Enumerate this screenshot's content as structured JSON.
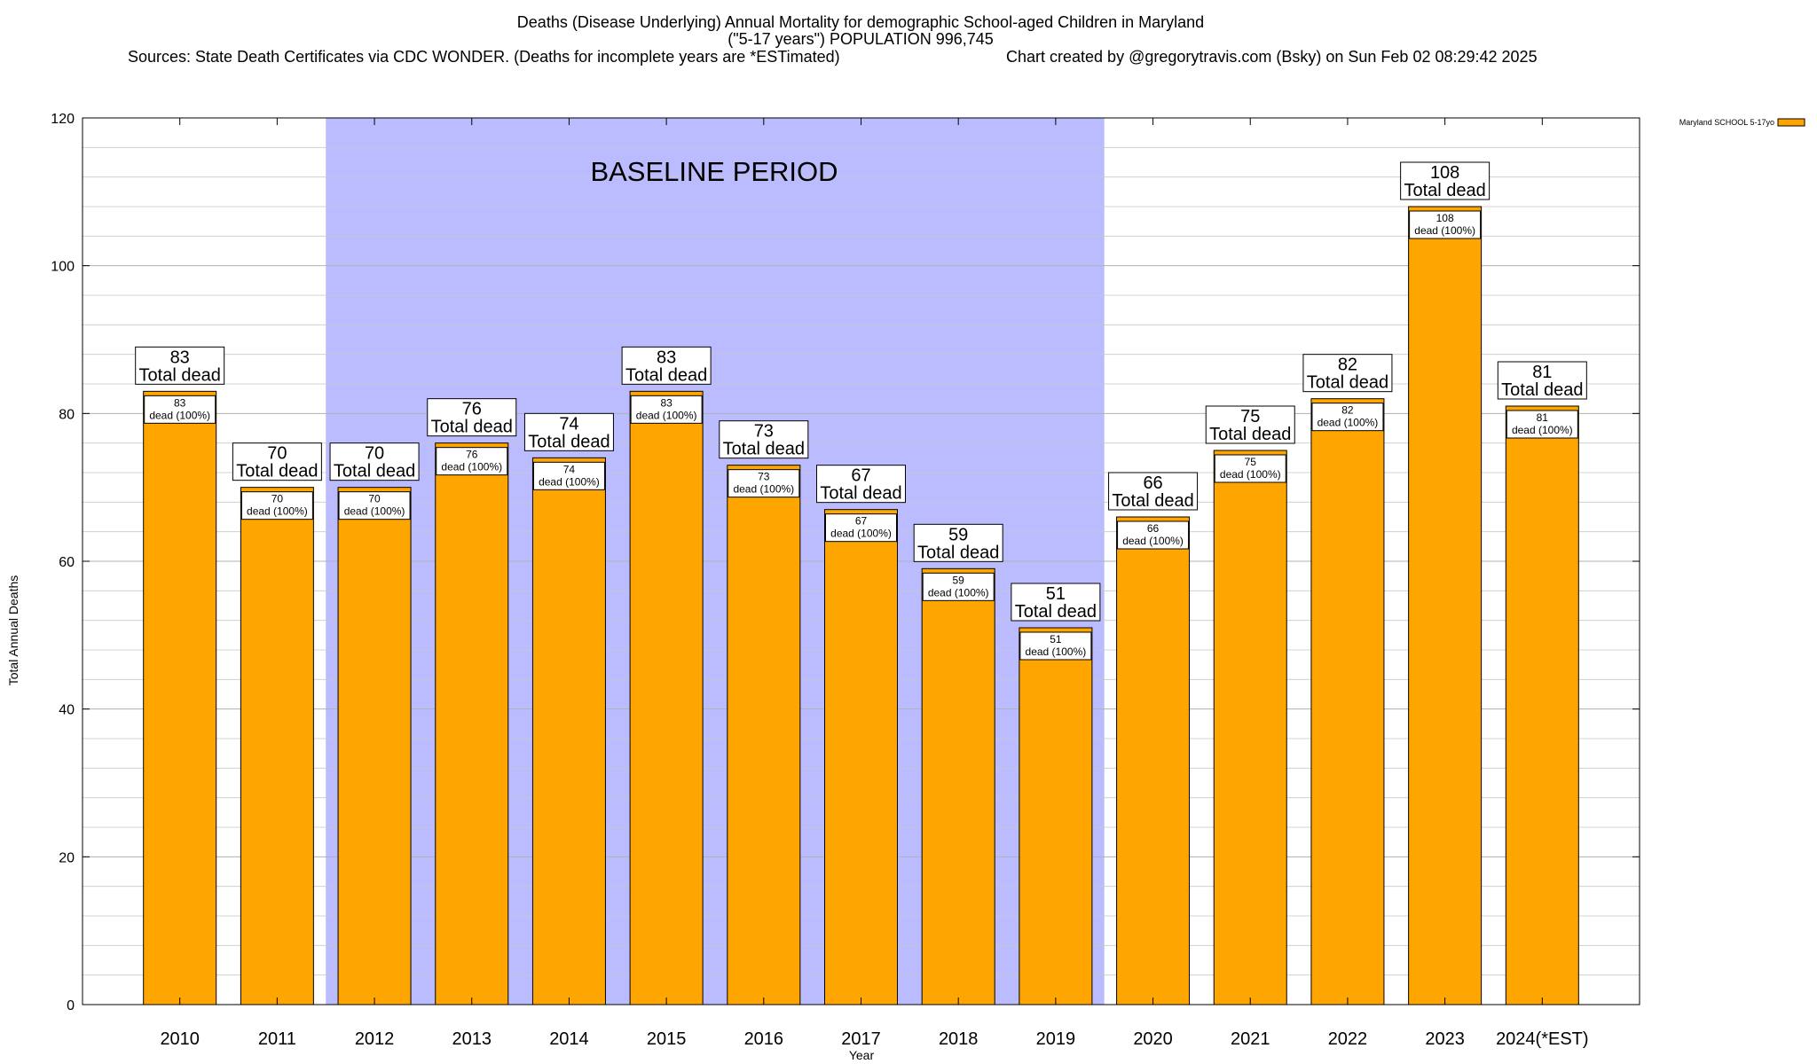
{
  "chart_data": {
    "type": "bar",
    "title_lines": [
      "Deaths (Disease Underlying) Annual Mortality for demographic School-aged Children in Maryland",
      "(\"5-17 years\") POPULATION 996,745"
    ],
    "sources_text": "Sources: State Death Certificates via CDC WONDER. (Deaths for incomplete years are *ESTimated)",
    "credit_text": "Chart created by @gregorytravis.com (Bsky) on Sun Feb 02 08:29:42 2025",
    "xlabel": "Year",
    "ylabel": "Total Annual Deaths",
    "ylim": [
      0,
      120
    ],
    "yticks": [
      0,
      20,
      40,
      60,
      80,
      100,
      120
    ],
    "y_minor_step": 4,
    "grid": true,
    "legend_position": "top-right, outside plot",
    "categories": [
      "2010",
      "2011",
      "2012",
      "2013",
      "2014",
      "2015",
      "2016",
      "2017",
      "2018",
      "2019",
      "2020",
      "2021",
      "2022",
      "2023",
      "2024(*EST)"
    ],
    "series": [
      {
        "name": "Maryland SCHOOL 5-17yo",
        "color": "#FFA500",
        "values": [
          83,
          70,
          70,
          76,
          74,
          83,
          73,
          67,
          59,
          51,
          66,
          75,
          82,
          108,
          81
        ]
      }
    ],
    "total_label_suffix": "Total dead",
    "inner_label_suffix": "dead (100%)",
    "baseline": {
      "label": "BASELINE PERIOD",
      "from_category": "2012",
      "to_category": "2019",
      "color": "#BBBBFF"
    }
  }
}
